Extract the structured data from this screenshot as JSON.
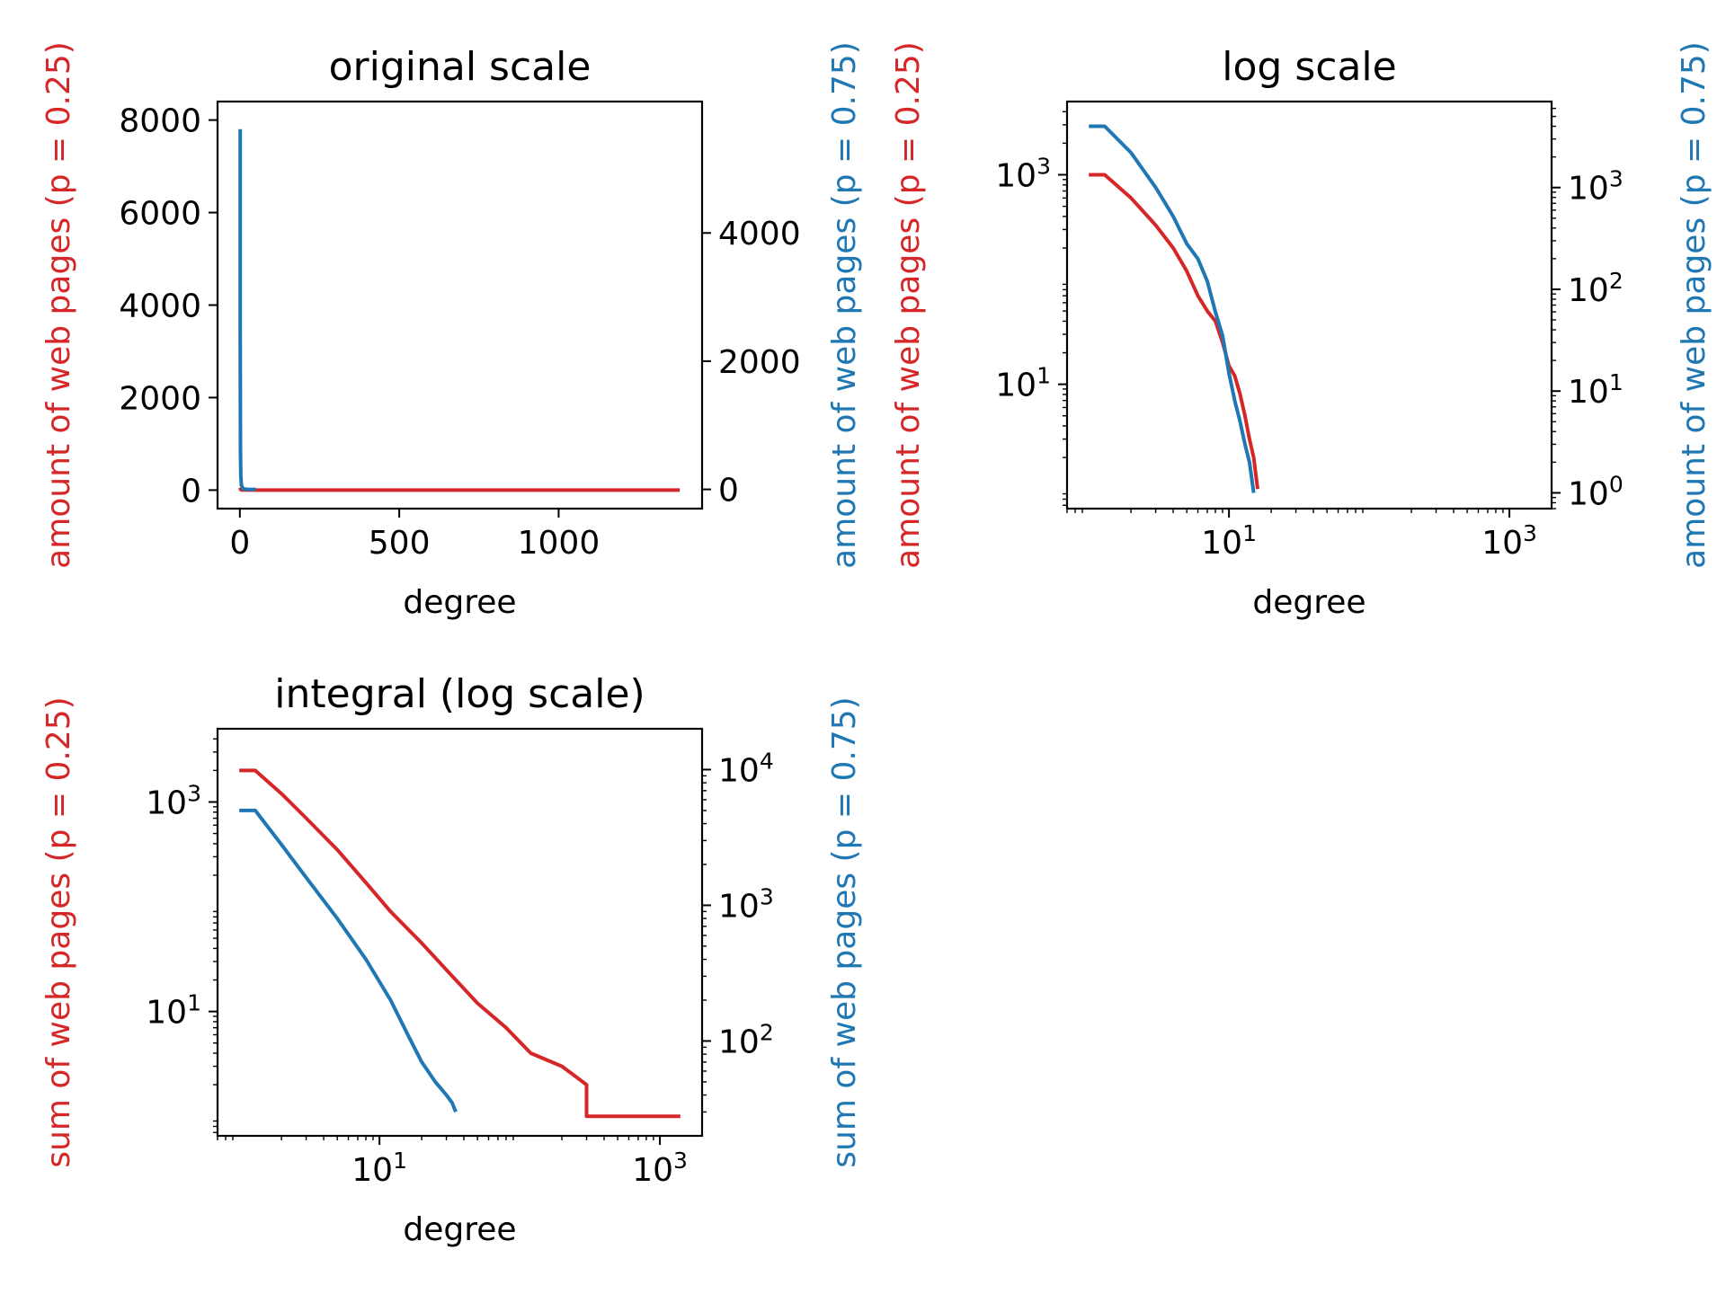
{
  "colors": {
    "red": "#d62728",
    "blue": "#1f77b4",
    "axis": "#000000"
  },
  "chart_data": [
    {
      "id": "original",
      "type": "line",
      "title": "original scale",
      "xlabel": "degree",
      "ylabel_left": "amount of web pages (p = 0.25)",
      "ylabel_right": "amount of web pages (p = 0.75)",
      "xscale": "linear",
      "yscale_left": "linear",
      "yscale_right": "linear",
      "xlim": [
        -70,
        1450
      ],
      "ylim_left": [
        -400,
        8400
      ],
      "ylim_right": [
        -300,
        6050
      ],
      "xticks": [
        {
          "v": 0,
          "label": "0"
        },
        {
          "v": 500,
          "label": "500"
        },
        {
          "v": 1000,
          "label": "1000"
        }
      ],
      "yticks_left": [
        {
          "v": 0,
          "label": "0"
        },
        {
          "v": 2000,
          "label": "2000"
        },
        {
          "v": 4000,
          "label": "4000"
        },
        {
          "v": 6000,
          "label": "6000"
        },
        {
          "v": 8000,
          "label": "8000"
        }
      ],
      "yticks_right": [
        {
          "v": 0,
          "label": "0"
        },
        {
          "v": 2000,
          "label": "2000"
        },
        {
          "v": 4000,
          "label": "4000"
        }
      ],
      "series": [
        {
          "axis": "left",
          "color": "red",
          "x": [
            1,
            2,
            3,
            5,
            10,
            50,
            200,
            500,
            1000,
            1380
          ],
          "y": [
            50,
            20,
            10,
            5,
            2,
            0,
            0,
            0,
            0,
            0
          ]
        },
        {
          "axis": "right",
          "color": "blue",
          "x": [
            1,
            1,
            2,
            3,
            5,
            10,
            20,
            50
          ],
          "y": [
            5620,
            2500,
            600,
            200,
            60,
            10,
            2,
            0
          ]
        }
      ]
    },
    {
      "id": "log",
      "type": "line",
      "title": "log scale",
      "xlabel": "degree",
      "ylabel_left": "amount of web pages (p = 0.25)",
      "ylabel_right": "amount of web pages (p = 0.75)",
      "xscale": "log",
      "yscale_left": "log",
      "yscale_right": "log",
      "xlim": [
        0.7,
        2000
      ],
      "ylim_left": [
        0.65,
        5000
      ],
      "ylim_right": [
        0.7,
        7000
      ],
      "xticks": [
        {
          "v": 10,
          "base": "10",
          "exp": "1"
        },
        {
          "v": 1000,
          "base": "10",
          "exp": "3"
        }
      ],
      "yticks_left": [
        {
          "v": 10,
          "base": "10",
          "exp": "1"
        },
        {
          "v": 1000,
          "base": "10",
          "exp": "3"
        }
      ],
      "yticks_right": [
        {
          "v": 1,
          "base": "10",
          "exp": "0"
        },
        {
          "v": 10,
          "base": "10",
          "exp": "1"
        },
        {
          "v": 100,
          "base": "10",
          "exp": "2"
        },
        {
          "v": 1000,
          "base": "10",
          "exp": "3"
        }
      ],
      "series": [
        {
          "axis": "left",
          "color": "red",
          "x": [
            1,
            1.3,
            2,
            3,
            4,
            5,
            6,
            7,
            8,
            9,
            10,
            11,
            12,
            13,
            14,
            15,
            16
          ],
          "y": [
            1000,
            1000,
            600,
            330,
            200,
            120,
            70,
            50,
            40,
            25,
            15,
            12,
            8,
            5,
            3,
            2,
            1
          ]
        },
        {
          "axis": "right",
          "color": "blue",
          "x": [
            1,
            1.3,
            2,
            3,
            4,
            5,
            6,
            7,
            8,
            9,
            10,
            11,
            12,
            13,
            14,
            15
          ],
          "y": [
            4000,
            4000,
            2200,
            1000,
            520,
            280,
            200,
            120,
            60,
            35,
            15,
            8,
            5,
            3,
            2,
            1
          ]
        }
      ]
    },
    {
      "id": "integral",
      "type": "line",
      "title": "integral (log scale)",
      "xlabel": "degree",
      "ylabel_left": "sum of web pages (p = 0.25)",
      "ylabel_right": "sum of web pages (p = 0.75)",
      "xscale": "log",
      "yscale_left": "log",
      "yscale_right": "log",
      "xlim": [
        0.7,
        2000
      ],
      "ylim_left": [
        0.65,
        5000
      ],
      "ylim_right": [
        20,
        20000
      ],
      "xticks": [
        {
          "v": 10,
          "base": "10",
          "exp": "1"
        },
        {
          "v": 1000,
          "base": "10",
          "exp": "3"
        }
      ],
      "yticks_left": [
        {
          "v": 10,
          "base": "10",
          "exp": "1"
        },
        {
          "v": 1000,
          "base": "10",
          "exp": "3"
        }
      ],
      "yticks_right": [
        {
          "v": 100,
          "base": "10",
          "exp": "2"
        },
        {
          "v": 1000,
          "base": "10",
          "exp": "3"
        },
        {
          "v": 10000,
          "base": "10",
          "exp": "4"
        }
      ],
      "series": [
        {
          "axis": "left",
          "color": "red",
          "x": [
            1,
            1.3,
            2,
            3,
            5,
            8,
            12,
            20,
            30,
            50,
            80,
            120,
            200,
            300,
            300,
            1400
          ],
          "y": [
            2000,
            2000,
            1200,
            700,
            350,
            170,
            90,
            45,
            25,
            12,
            7,
            4,
            3,
            2,
            1,
            1
          ]
        },
        {
          "axis": "right",
          "color": "blue",
          "x": [
            1,
            1.3,
            2,
            3,
            5,
            8,
            12,
            16,
            20,
            25,
            30,
            33,
            35
          ],
          "y": [
            5000,
            5000,
            2800,
            1600,
            800,
            400,
            200,
            110,
            70,
            50,
            40,
            35,
            30
          ]
        }
      ]
    }
  ]
}
